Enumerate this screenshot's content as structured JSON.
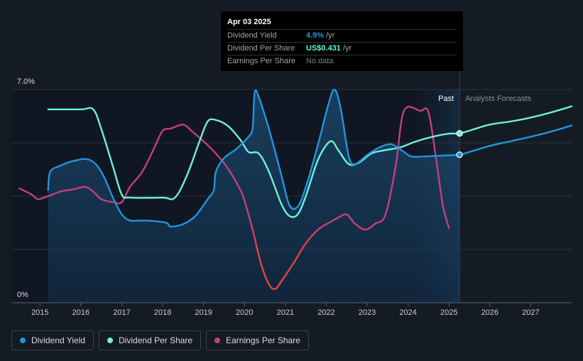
{
  "tooltip": {
    "date": "Apr 03 2025",
    "rows": [
      {
        "label": "Dividend Yield",
        "value": "4.9%",
        "unit": "/yr",
        "color": "#2394df"
      },
      {
        "label": "Dividend Per Share",
        "value": "US$0.431",
        "unit": "/yr",
        "color": "#6cf1d7"
      },
      {
        "label": "Earnings Per Share",
        "value": "No data",
        "unit": "",
        "color": "#7c8189"
      }
    ]
  },
  "legend": [
    {
      "label": "Dividend Yield",
      "color": "#2394df"
    },
    {
      "label": "Dividend Per Share",
      "color": "#6cf1d7"
    },
    {
      "label": "Earnings Per Share",
      "color": "#c2407a"
    }
  ],
  "chart_data": {
    "type": "line",
    "y_top_label": "7.0%",
    "y_bottom_label": "0%",
    "ylim": [
      0,
      7.0
    ],
    "xlim": [
      2014.3,
      2028.0
    ],
    "x_ticks": [
      2015,
      2016,
      2017,
      2018,
      2019,
      2020,
      2021,
      2022,
      2023,
      2024,
      2025,
      2026,
      2027
    ],
    "past_label": "Past",
    "forecast_label": "Analysts Forecasts",
    "past_start": 2024.2,
    "now": 2025.26,
    "colors": {
      "yield": "#2394df",
      "dps": "#6cf1d7",
      "eps": "#c2407a",
      "eps_low": "#e8423c"
    },
    "series": [
      {
        "name": "Dividend Yield",
        "key": "yield",
        "points": [
          [
            2015.2,
            3.7
          ],
          [
            2015.25,
            4.3
          ],
          [
            2015.5,
            4.5
          ],
          [
            2015.8,
            4.65
          ],
          [
            2016.2,
            4.7
          ],
          [
            2016.5,
            4.3
          ],
          [
            2016.8,
            3.4
          ],
          [
            2017.0,
            2.9
          ],
          [
            2017.2,
            2.7
          ],
          [
            2017.5,
            2.7
          ],
          [
            2017.8,
            2.68
          ],
          [
            2018.1,
            2.62
          ],
          [
            2018.2,
            2.5
          ],
          [
            2018.5,
            2.58
          ],
          [
            2018.8,
            2.85
          ],
          [
            2019.1,
            3.4
          ],
          [
            2019.25,
            3.7
          ],
          [
            2019.3,
            4.3
          ],
          [
            2019.5,
            4.75
          ],
          [
            2019.8,
            5.05
          ],
          [
            2020.1,
            5.45
          ],
          [
            2020.2,
            5.75
          ],
          [
            2020.25,
            6.9
          ],
          [
            2020.35,
            6.75
          ],
          [
            2020.6,
            5.7
          ],
          [
            2020.9,
            4.2
          ],
          [
            2021.1,
            3.2
          ],
          [
            2021.3,
            3.15
          ],
          [
            2021.5,
            3.8
          ],
          [
            2021.8,
            5.2
          ],
          [
            2022.05,
            6.5
          ],
          [
            2022.2,
            7.0
          ],
          [
            2022.35,
            6.4
          ],
          [
            2022.55,
            4.8
          ],
          [
            2022.7,
            4.55
          ],
          [
            2023.0,
            4.85
          ],
          [
            2023.3,
            5.1
          ],
          [
            2023.6,
            5.2
          ],
          [
            2023.9,
            4.95
          ],
          [
            2024.1,
            4.8
          ],
          [
            2024.5,
            4.81
          ],
          [
            2025.0,
            4.84
          ],
          [
            2025.26,
            4.86
          ],
          [
            2025.5,
            4.95
          ],
          [
            2026.0,
            5.15
          ],
          [
            2026.5,
            5.3
          ],
          [
            2027.0,
            5.45
          ],
          [
            2027.5,
            5.62
          ],
          [
            2028.0,
            5.82
          ]
        ]
      },
      {
        "name": "Dividend Per Share",
        "key": "dps",
        "points": [
          [
            2015.2,
            6.35
          ],
          [
            2016.0,
            6.35
          ],
          [
            2016.3,
            6.35
          ],
          [
            2016.5,
            5.7
          ],
          [
            2016.8,
            4.4
          ],
          [
            2017.0,
            3.55
          ],
          [
            2017.2,
            3.45
          ],
          [
            2018.0,
            3.45
          ],
          [
            2018.3,
            3.45
          ],
          [
            2018.6,
            4.2
          ],
          [
            2018.9,
            5.3
          ],
          [
            2019.1,
            5.95
          ],
          [
            2019.3,
            6.0
          ],
          [
            2019.6,
            5.8
          ],
          [
            2019.9,
            5.35
          ],
          [
            2020.1,
            4.95
          ],
          [
            2020.35,
            4.9
          ],
          [
            2020.6,
            4.3
          ],
          [
            2020.9,
            3.25
          ],
          [
            2021.1,
            2.85
          ],
          [
            2021.3,
            2.9
          ],
          [
            2021.5,
            3.5
          ],
          [
            2021.8,
            4.7
          ],
          [
            2022.1,
            5.3
          ],
          [
            2022.3,
            5.0
          ],
          [
            2022.55,
            4.55
          ],
          [
            2022.8,
            4.6
          ],
          [
            2023.1,
            4.9
          ],
          [
            2023.4,
            5.0
          ],
          [
            2023.8,
            5.1
          ],
          [
            2024.2,
            5.3
          ],
          [
            2024.6,
            5.45
          ],
          [
            2025.0,
            5.55
          ],
          [
            2025.26,
            5.56
          ],
          [
            2025.5,
            5.65
          ],
          [
            2026.0,
            5.85
          ],
          [
            2026.5,
            5.95
          ],
          [
            2027.0,
            6.08
          ],
          [
            2027.5,
            6.25
          ],
          [
            2028.0,
            6.45
          ]
        ]
      },
      {
        "name": "Earnings Per Share",
        "key": "eps",
        "points": [
          [
            2014.5,
            3.75
          ],
          [
            2014.8,
            3.55
          ],
          [
            2014.95,
            3.4
          ],
          [
            2015.2,
            3.5
          ],
          [
            2015.5,
            3.65
          ],
          [
            2015.8,
            3.72
          ],
          [
            2016.1,
            3.8
          ],
          [
            2016.3,
            3.65
          ],
          [
            2016.5,
            3.4
          ],
          [
            2016.8,
            3.3
          ],
          [
            2017.0,
            3.3
          ],
          [
            2017.2,
            3.8
          ],
          [
            2017.5,
            4.3
          ],
          [
            2017.8,
            5.1
          ],
          [
            2018.0,
            5.65
          ],
          [
            2018.2,
            5.72
          ],
          [
            2018.5,
            5.85
          ],
          [
            2018.7,
            5.65
          ],
          [
            2019.0,
            5.3
          ],
          [
            2019.3,
            4.9
          ],
          [
            2019.6,
            4.4
          ],
          [
            2019.9,
            3.7
          ],
          [
            2020.0,
            3.35
          ],
          [
            2020.2,
            2.4
          ],
          [
            2020.4,
            1.3
          ],
          [
            2020.6,
            0.6
          ],
          [
            2020.75,
            0.45
          ],
          [
            2020.9,
            0.7
          ],
          [
            2021.2,
            1.3
          ],
          [
            2021.5,
            1.95
          ],
          [
            2021.8,
            2.4
          ],
          [
            2022.1,
            2.65
          ],
          [
            2022.3,
            2.8
          ],
          [
            2022.5,
            2.9
          ],
          [
            2022.7,
            2.6
          ],
          [
            2022.95,
            2.4
          ],
          [
            2023.2,
            2.6
          ],
          [
            2023.45,
            2.9
          ],
          [
            2023.7,
            4.5
          ],
          [
            2023.9,
            6.3
          ],
          [
            2024.3,
            6.3
          ],
          [
            2024.5,
            6.25
          ],
          [
            2024.7,
            4.6
          ],
          [
            2024.85,
            3.2
          ],
          [
            2025.0,
            2.45
          ]
        ]
      }
    ],
    "fill_series": "yield"
  }
}
